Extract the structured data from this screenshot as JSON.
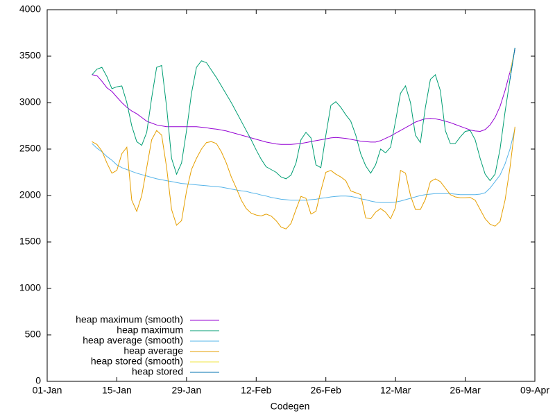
{
  "chart_data": {
    "type": "line",
    "x_label": "Codegen",
    "xlim": [
      0,
      98
    ],
    "xticks": [
      {
        "value": 0,
        "label": "01-Jan"
      },
      {
        "value": 14,
        "label": "15-Jan"
      },
      {
        "value": 28,
        "label": "29-Jan"
      },
      {
        "value": 42,
        "label": "12-Feb"
      },
      {
        "value": 56,
        "label": "26-Feb"
      },
      {
        "value": 70,
        "label": "12-Mar"
      },
      {
        "value": 84,
        "label": "26-Mar"
      },
      {
        "value": 98,
        "label": "09-Apr"
      }
    ],
    "ylim": [
      0,
      4000
    ],
    "yticks": [
      0,
      500,
      1000,
      1500,
      2000,
      2500,
      3000,
      3500,
      4000
    ],
    "legend": "bottom-left",
    "x": [
      9,
      10,
      11,
      12,
      13,
      14,
      15,
      16,
      17,
      18,
      19,
      20,
      21,
      22,
      23,
      24,
      25,
      26,
      27,
      28,
      29,
      30,
      31,
      32,
      33,
      34,
      35,
      36,
      37,
      38,
      39,
      40,
      41,
      42,
      43,
      44,
      45,
      46,
      47,
      48,
      49,
      50,
      51,
      52,
      53,
      54,
      55,
      56,
      57,
      58,
      59,
      60,
      61,
      62,
      63,
      64,
      65,
      66,
      67,
      68,
      69,
      70,
      71,
      72,
      73,
      74,
      75,
      76,
      77,
      78,
      79,
      80,
      81,
      82,
      83,
      84,
      85,
      86,
      87,
      88,
      89,
      90,
      91,
      92,
      93,
      94
    ],
    "series": [
      {
        "name": "heap maximum (smooth)",
        "color": "#9400d3",
        "values": [
          3300,
          3290,
          3230,
          3160,
          3120,
          3060,
          3000,
          2950,
          2910,
          2880,
          2840,
          2800,
          2780,
          2760,
          2750,
          2740,
          2740,
          2740,
          2740,
          2740,
          2740,
          2740,
          2735,
          2730,
          2720,
          2715,
          2705,
          2695,
          2680,
          2665,
          2650,
          2635,
          2620,
          2605,
          2590,
          2575,
          2565,
          2555,
          2550,
          2550,
          2550,
          2555,
          2560,
          2570,
          2580,
          2590,
          2600,
          2610,
          2620,
          2625,
          2620,
          2615,
          2605,
          2595,
          2585,
          2580,
          2575,
          2575,
          2590,
          2615,
          2640,
          2670,
          2700,
          2730,
          2760,
          2790,
          2810,
          2825,
          2830,
          2825,
          2815,
          2800,
          2785,
          2765,
          2745,
          2725,
          2705,
          2695,
          2690,
          2710,
          2760,
          2840,
          2960,
          3130,
          3330,
          3570
        ]
      },
      {
        "name": "heap maximum",
        "color": "#009e73",
        "values": [
          3300,
          3360,
          3380,
          3280,
          3150,
          3170,
          3180,
          3000,
          2750,
          2580,
          2540,
          2680,
          3050,
          3380,
          3400,
          2950,
          2400,
          2230,
          2350,
          2700,
          3100,
          3380,
          3450,
          3430,
          3350,
          3270,
          3180,
          3090,
          3000,
          2900,
          2800,
          2700,
          2600,
          2490,
          2390,
          2310,
          2280,
          2250,
          2200,
          2180,
          2220,
          2350,
          2600,
          2680,
          2620,
          2330,
          2300,
          2650,
          2970,
          3010,
          2950,
          2870,
          2800,
          2650,
          2450,
          2320,
          2240,
          2330,
          2500,
          2460,
          2520,
          2800,
          3100,
          3180,
          3000,
          2650,
          2570,
          2950,
          3250,
          3300,
          3130,
          2700,
          2560,
          2560,
          2630,
          2690,
          2700,
          2600,
          2400,
          2230,
          2160,
          2230,
          2500,
          2900,
          3250,
          3590
        ]
      },
      {
        "name": "heap average (smooth)",
        "color": "#56b4e9",
        "values": [
          2560,
          2510,
          2470,
          2420,
          2380,
          2330,
          2300,
          2280,
          2260,
          2240,
          2225,
          2210,
          2195,
          2180,
          2170,
          2160,
          2150,
          2140,
          2130,
          2125,
          2120,
          2115,
          2110,
          2105,
          2100,
          2095,
          2090,
          2080,
          2070,
          2060,
          2050,
          2045,
          2030,
          2020,
          2005,
          1995,
          1980,
          1970,
          1960,
          1955,
          1950,
          1950,
          1950,
          1950,
          1955,
          1960,
          1970,
          1975,
          1985,
          1990,
          1995,
          1995,
          1990,
          1980,
          1965,
          1955,
          1940,
          1930,
          1925,
          1925,
          1925,
          1930,
          1940,
          1955,
          1970,
          1985,
          2000,
          2010,
          2015,
          2020,
          2020,
          2020,
          2020,
          2015,
          2010,
          2010,
          2010,
          2010,
          2015,
          2030,
          2080,
          2150,
          2220,
          2340,
          2500,
          2720
        ]
      },
      {
        "name": "heap average",
        "color": "#e69f00",
        "values": [
          2580,
          2550,
          2480,
          2350,
          2240,
          2270,
          2450,
          2520,
          1950,
          1830,
          2000,
          2300,
          2600,
          2700,
          2650,
          2300,
          1850,
          1680,
          1730,
          2050,
          2280,
          2400,
          2500,
          2570,
          2580,
          2560,
          2470,
          2350,
          2200,
          2080,
          1950,
          1860,
          1810,
          1790,
          1780,
          1800,
          1780,
          1730,
          1660,
          1640,
          1700,
          1850,
          1990,
          1970,
          1800,
          1830,
          2050,
          2250,
          2270,
          2230,
          2200,
          2160,
          2050,
          2030,
          2010,
          1760,
          1750,
          1820,
          1860,
          1820,
          1750,
          1870,
          2270,
          2240,
          2000,
          1850,
          1850,
          1960,
          2150,
          2180,
          2150,
          2080,
          2010,
          1985,
          1975,
          1975,
          1980,
          1950,
          1850,
          1750,
          1690,
          1670,
          1720,
          1950,
          2300,
          2740
        ]
      },
      {
        "name": "heap stored (smooth)",
        "color": "#f0e442",
        "values": [
          null,
          null,
          null,
          null,
          null,
          null,
          null,
          null,
          null,
          null,
          null,
          null,
          null,
          null,
          null,
          null,
          null,
          null,
          null,
          null,
          null,
          null,
          null,
          null,
          null,
          null,
          null,
          null,
          null,
          null,
          null,
          null,
          null,
          null,
          null,
          null,
          null,
          null,
          null,
          null,
          null,
          null,
          null,
          null,
          null,
          null,
          null,
          null,
          null,
          null,
          null,
          null,
          null,
          null,
          null,
          null,
          null,
          null,
          null,
          null,
          null,
          null,
          null,
          null,
          null,
          null,
          null,
          null,
          null,
          null,
          null,
          null,
          null,
          null,
          null,
          null,
          null,
          null,
          null,
          null,
          null,
          null,
          null,
          null,
          3320,
          3580
        ]
      },
      {
        "name": "heap stored",
        "color": "#0072b2",
        "values": [
          null,
          null,
          null,
          null,
          null,
          null,
          null,
          null,
          null,
          null,
          null,
          null,
          null,
          null,
          null,
          null,
          null,
          null,
          null,
          null,
          null,
          null,
          null,
          null,
          null,
          null,
          null,
          null,
          null,
          null,
          null,
          null,
          null,
          null,
          null,
          null,
          null,
          null,
          null,
          null,
          null,
          null,
          null,
          null,
          null,
          null,
          null,
          null,
          null,
          null,
          null,
          null,
          null,
          null,
          null,
          null,
          null,
          null,
          null,
          null,
          null,
          null,
          null,
          null,
          null,
          null,
          null,
          null,
          null,
          null,
          null,
          null,
          null,
          null,
          null,
          null,
          null,
          null,
          null,
          null,
          null,
          null,
          null,
          null,
          3250,
          3590
        ]
      }
    ]
  }
}
